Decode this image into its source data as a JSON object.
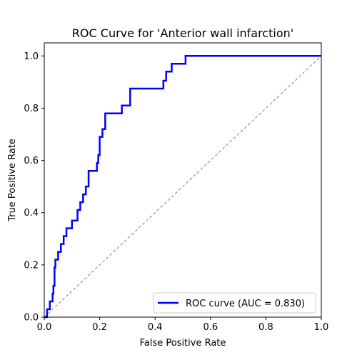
{
  "chart_data": {
    "type": "line",
    "title": "ROC Curve for 'Anterior wall infarction'",
    "xlabel": "False Positive Rate",
    "ylabel": "True Positive Rate",
    "xlim": [
      0.0,
      1.0
    ],
    "ylim": [
      0.0,
      1.05
    ],
    "xticks": [
      "0.0",
      "0.2",
      "0.4",
      "0.6",
      "0.8",
      "1.0"
    ],
    "xtick_values": [
      0.0,
      0.2,
      0.4,
      0.6,
      0.8,
      1.0
    ],
    "yticks": [
      "0.0",
      "0.2",
      "0.4",
      "0.6",
      "0.8",
      "1.0"
    ],
    "ytick_values": [
      0.0,
      0.2,
      0.4,
      0.6,
      0.8,
      1.0
    ],
    "grid": false,
    "legend_position": "lower right",
    "series": [
      {
        "name": "ROC curve (AUC = 0.830)",
        "color": "#0000ff",
        "style": "solid",
        "x": [
          0.0,
          0.0,
          0.01,
          0.01,
          0.02,
          0.02,
          0.03,
          0.03,
          0.033,
          0.033,
          0.037,
          0.037,
          0.04,
          0.04,
          0.05,
          0.05,
          0.06,
          0.06,
          0.07,
          0.07,
          0.08,
          0.08,
          0.1,
          0.1,
          0.12,
          0.12,
          0.13,
          0.13,
          0.14,
          0.14,
          0.15,
          0.15,
          0.16,
          0.16,
          0.19,
          0.19,
          0.195,
          0.195,
          0.2,
          0.2,
          0.21,
          0.21,
          0.22,
          0.22,
          0.25,
          0.25,
          0.28,
          0.28,
          0.31,
          0.31,
          0.43,
          0.43,
          0.44,
          0.44,
          0.46,
          0.46,
          0.51,
          0.51,
          1.0
        ],
        "y": [
          0.0,
          0.0,
          0.0,
          0.03,
          0.03,
          0.06,
          0.06,
          0.09,
          0.09,
          0.12,
          0.12,
          0.19,
          0.19,
          0.22,
          0.22,
          0.25,
          0.25,
          0.28,
          0.28,
          0.31,
          0.31,
          0.34,
          0.34,
          0.37,
          0.37,
          0.41,
          0.41,
          0.44,
          0.44,
          0.47,
          0.47,
          0.5,
          0.5,
          0.56,
          0.56,
          0.59,
          0.59,
          0.62,
          0.62,
          0.69,
          0.69,
          0.72,
          0.72,
          0.78,
          0.78,
          0.78,
          0.78,
          0.81,
          0.81,
          0.875,
          0.875,
          0.905,
          0.905,
          0.94,
          0.94,
          0.97,
          0.97,
          1.0,
          1.0
        ]
      },
      {
        "name": "",
        "color": "#808080",
        "style": "dashed",
        "x": [
          0.0,
          1.0
        ],
        "y": [
          0.0,
          1.0
        ]
      }
    ]
  }
}
